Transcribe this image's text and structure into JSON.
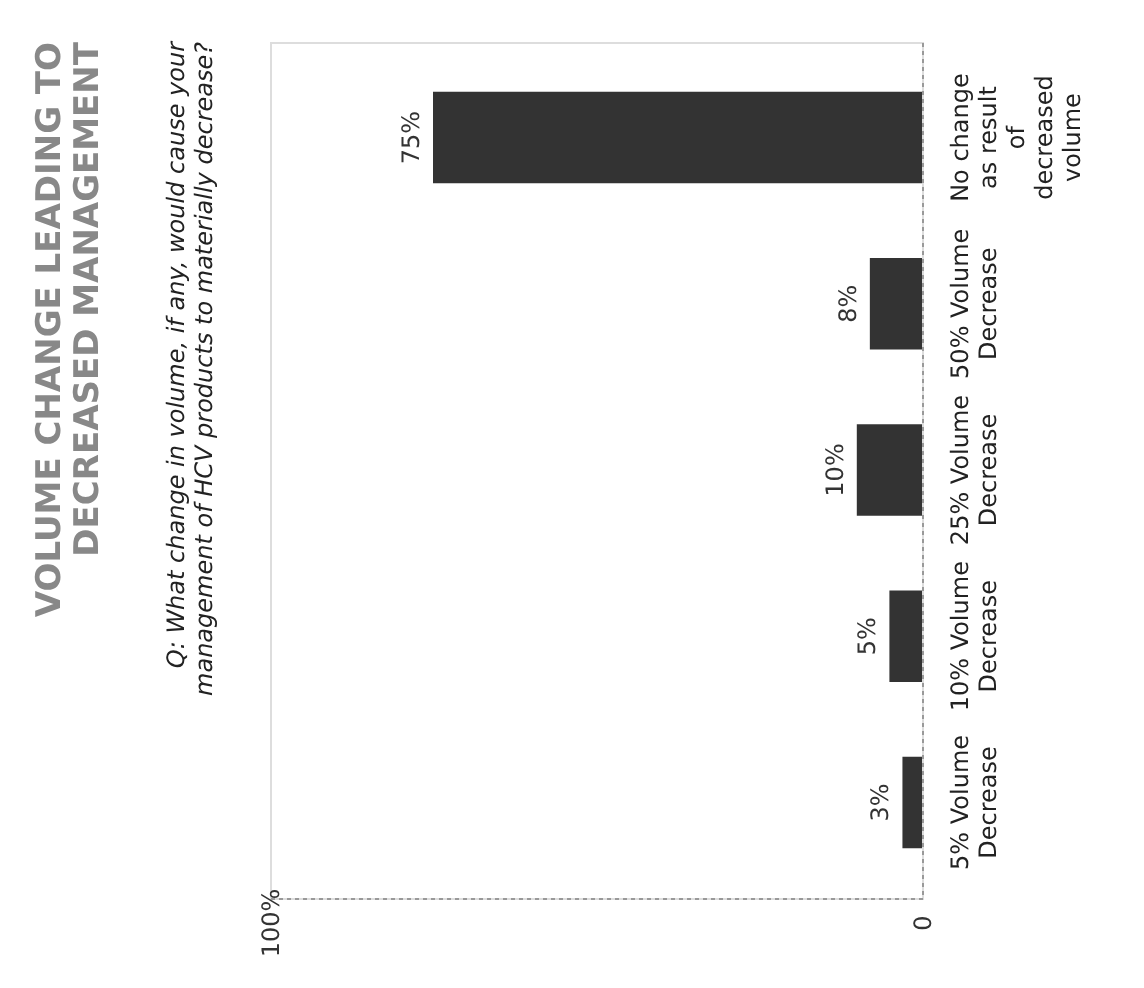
{
  "chart_data": {
    "type": "bar",
    "orientation": "horizontal",
    "title": "VOLUME CHANGE LEADING TO DECREASED MANAGEMENT",
    "subtitle": "Q: What change in volume, if any, would cause your management of HCV products to materially decrease?",
    "categories": [
      "No change as result of decreased volume",
      "50% Volume Decrease",
      "25% Volume Decrease",
      "10% Volume Decrease",
      "5% Volume Decrease"
    ],
    "values": [
      75,
      8,
      10,
      5,
      3
    ],
    "value_labels": [
      "75%",
      "8%",
      "10%",
      "5%",
      "3%"
    ],
    "color": "#333333",
    "xlim": [
      100,
      0
    ],
    "xticks": [
      {
        "value": 100,
        "label": "100%"
      },
      0
    ]
  }
}
